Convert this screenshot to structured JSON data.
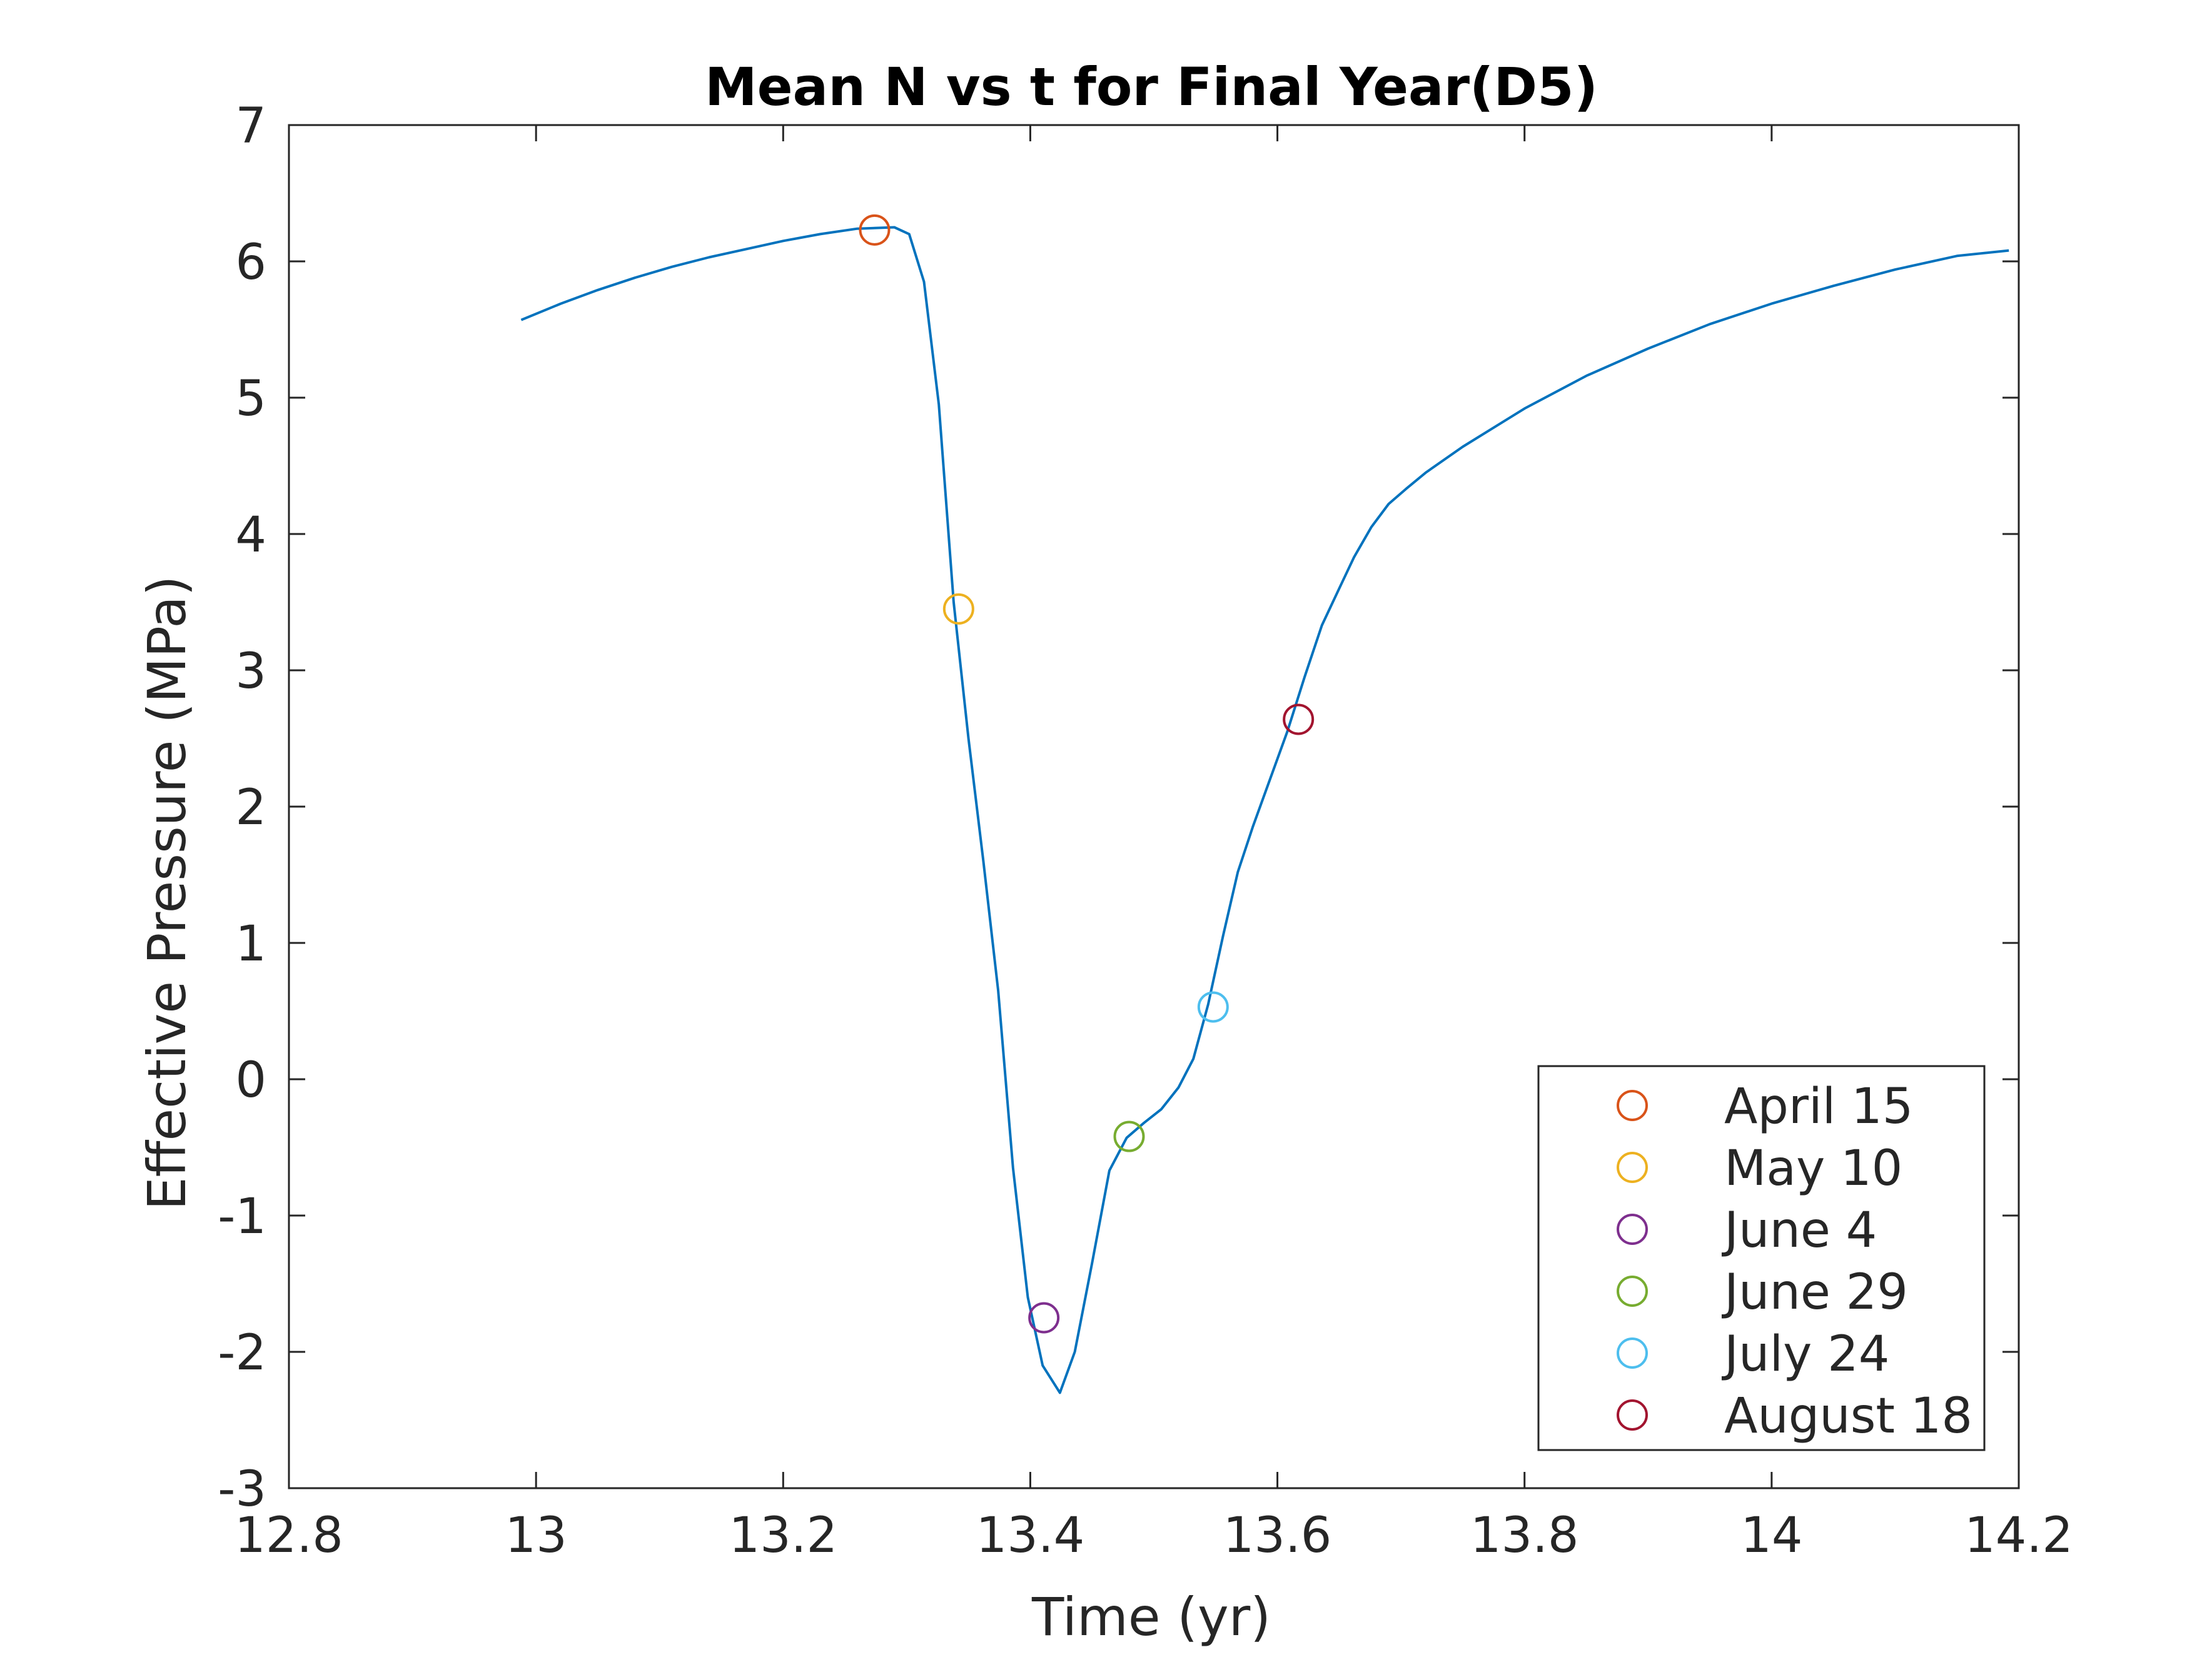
{
  "chart_data": {
    "type": "line",
    "title": "Mean N vs t for Final Year(D5)",
    "xlabel": "Time (yr)",
    "ylabel": "Effective Pressure (MPa)",
    "xlim": [
      12.8,
      14.2
    ],
    "ylim": [
      -3,
      7
    ],
    "xticks": [
      12.8,
      13,
      13.2,
      13.4,
      13.6,
      13.8,
      14,
      14.2
    ],
    "xtick_labels": [
      "12.8",
      "13",
      "13.2",
      "13.4",
      "13.6",
      "13.8",
      "14",
      "14.2"
    ],
    "yticks": [
      7,
      6,
      5,
      4,
      3,
      2,
      1,
      0,
      -1,
      -2,
      -3
    ],
    "ytick_labels": [
      "7",
      "6",
      "5",
      "4",
      "3",
      "2",
      "1",
      "0",
      "-1",
      "-2",
      "-3"
    ],
    "grid": false,
    "legend_position": "bottom-right",
    "line_color": "#0072BD",
    "series": [
      {
        "x": [
          12.988,
          13.02,
          13.05,
          13.08,
          13.11,
          13.14,
          13.17,
          13.2,
          13.23,
          13.26,
          13.29,
          13.302,
          13.314,
          13.326,
          13.338,
          13.35,
          13.362,
          13.374,
          13.386,
          13.398,
          13.41,
          13.424,
          13.436,
          13.45,
          13.464,
          13.478,
          13.492,
          13.506,
          13.52,
          13.532,
          13.544,
          13.556,
          13.568,
          13.58,
          13.594,
          13.608,
          13.622,
          13.636,
          13.65,
          13.662,
          13.676,
          13.69,
          13.704,
          13.72,
          13.75,
          13.8,
          13.85,
          13.9,
          13.95,
          14.0,
          14.05,
          14.1,
          14.15,
          14.192
        ],
        "y": [
          5.57,
          5.69,
          5.79,
          5.88,
          5.96,
          6.03,
          6.09,
          6.15,
          6.2,
          6.24,
          6.25,
          6.2,
          5.85,
          4.95,
          3.5,
          2.5,
          1.6,
          0.65,
          -0.65,
          -1.6,
          -2.1,
          -2.3,
          -2.0,
          -1.35,
          -0.67,
          -0.43,
          -0.32,
          -0.22,
          -0.06,
          0.15,
          0.55,
          1.05,
          1.52,
          1.85,
          2.2,
          2.55,
          2.95,
          3.33,
          3.6,
          3.83,
          4.05,
          4.22,
          4.33,
          4.45,
          4.64,
          4.92,
          5.16,
          5.36,
          5.54,
          5.69,
          5.82,
          5.94,
          6.04,
          6.08
        ]
      }
    ],
    "markers": [
      {
        "name": "April 15",
        "x": 13.274,
        "y": 6.23,
        "color": "#D95319"
      },
      {
        "name": "May 10",
        "x": 13.342,
        "y": 3.45,
        "color": "#EDB120"
      },
      {
        "name": "June 4",
        "x": 13.411,
        "y": -1.75,
        "color": "#7E2F8E"
      },
      {
        "name": "June 29",
        "x": 13.48,
        "y": -0.42,
        "color": "#77AC30"
      },
      {
        "name": "July 24",
        "x": 13.548,
        "y": 0.53,
        "color": "#4DBEEE"
      },
      {
        "name": "August 18",
        "x": 13.617,
        "y": 2.64,
        "color": "#A2142F"
      }
    ]
  }
}
